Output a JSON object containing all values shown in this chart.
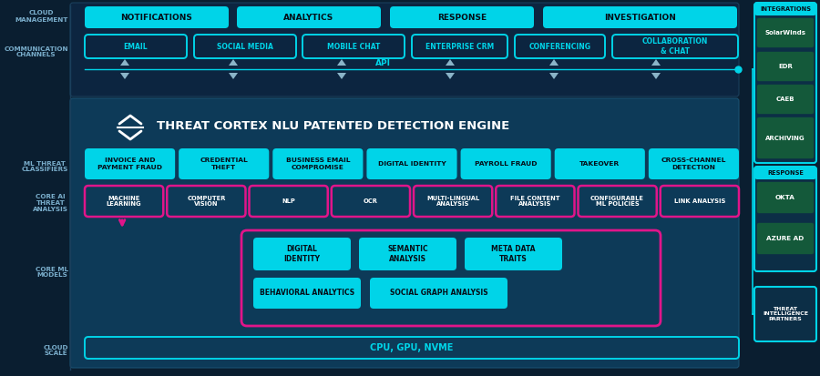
{
  "bg_outer": "#0a1e30",
  "bg_top_panel": "#0c2540",
  "bg_mid_panel": "#0d3d5c",
  "bg_mid_panel2": "#0e4060",
  "cyan": "#00d4e8",
  "magenta": "#e0158a",
  "white": "#ffffff",
  "black": "#050e18",
  "label_color": "#7aaecc",
  "title": "THREAT CORTEX NLU PATENTED DETECTION ENGINE",
  "cloud_mgmt_boxes": [
    "NOTIFICATIONS",
    "ANALYTICS",
    "RESPONSE",
    "INVESTIGATION"
  ],
  "comm_boxes": [
    "EMAIL",
    "SOCIAL MEDIA",
    "MOBILE CHAT",
    "ENTERPRISE CRM",
    "CONFERENCING",
    "COLLABORATION\n& CHAT"
  ],
  "ml_threat_boxes": [
    "INVOICE AND\nPAYMENT FRAUD",
    "CREDENTIAL\nTHEFT",
    "BUSINESS EMAIL\nCOMPROMISE",
    "DIGITAL IDENTITY",
    "PAYROLL FRAUD",
    "TAKEOVER",
    "CROSS-CHANNEL\nDETECTION"
  ],
  "core_threat_boxes": [
    "MACHINE\nLEARNING",
    "COMPUTER\nVISION",
    "NLP",
    "OCR",
    "MULTI-LINGUAL\nANALYSIS",
    "FILE CONTENT\nANALYSIS",
    "CONFIGURABLE\nML POLICIES",
    "LINK ANALYSIS"
  ],
  "core_ml_top": [
    "DIGITAL\nIDENTITY",
    "SEMANTIC\nANALYSIS",
    "META DATA\nTRAITS"
  ],
  "core_ml_bottom": [
    "BEHAVIORAL ANALYTICS",
    "SOCIAL GRAPH ANALYSIS"
  ],
  "cloud_scale": "CPU, GPU, NVME",
  "left_labels_text": [
    "CLOUD\nMANAGEMENT",
    "COMMUNICATION\nCHANNELS",
    "ML THREAT\nCLASSIFIERS",
    "CORE AI\nTHREAT\nANALYSIS",
    "CORE ML\nMODELS",
    "CLOUD\nSCALE"
  ],
  "right_integrations_title": "INTEGRATIONS",
  "right_integrations": [
    "SolarWinds",
    "EDR",
    "CAEB",
    "ARCHIVING"
  ],
  "right_response_title": "RESPONSE",
  "right_response": [
    "OKTA",
    "AZURE AD"
  ],
  "right_threat": "THREAT\nINTELLIGENCE\nPARTNERS",
  "api_label": "API"
}
